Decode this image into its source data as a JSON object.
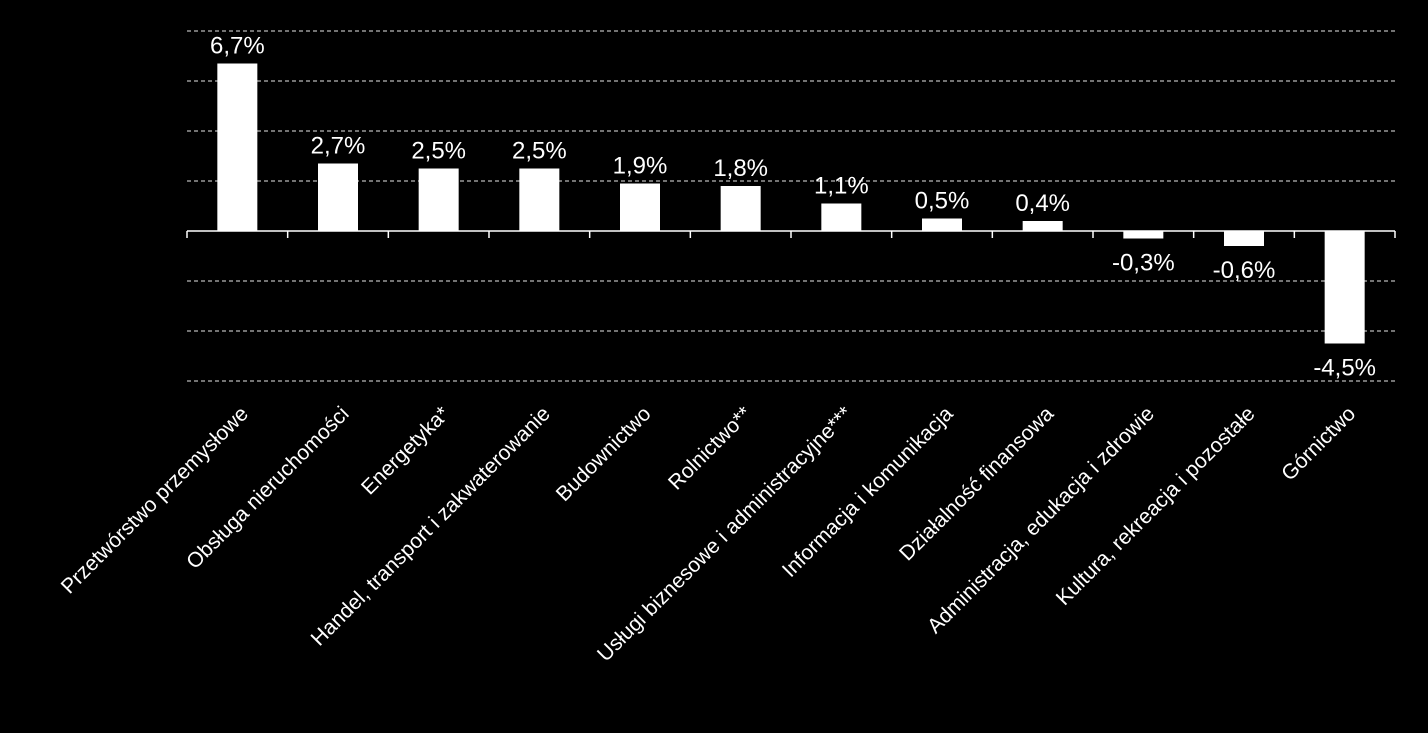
{
  "chart_data": {
    "type": "bar",
    "categories": [
      "Przetwórstwo przemysłowe",
      "Obsługa nieruchomości",
      "Energetyka*",
      "Handel, transport i zakwaterowanie",
      "Budownictwo",
      "Rolnictwo**",
      "Usługi biznesowe i administracyjne***",
      "Informacja i komunikacja",
      "Działalność finansowa",
      "Administracja, edukacja i zdrowie",
      "Kultura, rekreacja i pozostałe",
      "Górnictwo"
    ],
    "values": [
      6.7,
      2.7,
      2.5,
      2.5,
      1.9,
      1.8,
      1.1,
      0.5,
      0.4,
      -0.3,
      -0.6,
      -4.5
    ],
    "value_labels": [
      "6,7%",
      "2,7%",
      "2,5%",
      "2,5%",
      "1,9%",
      "1,8%",
      "1,1%",
      "0,5%",
      "0,4%",
      "-0,3%",
      "-0,6%",
      "-4,5%"
    ],
    "ylim": [
      -6,
      8
    ],
    "grid": true,
    "legend": "none",
    "colors": {
      "background": "#000000",
      "bar": "#ffffff",
      "text": "#ffffff"
    }
  }
}
